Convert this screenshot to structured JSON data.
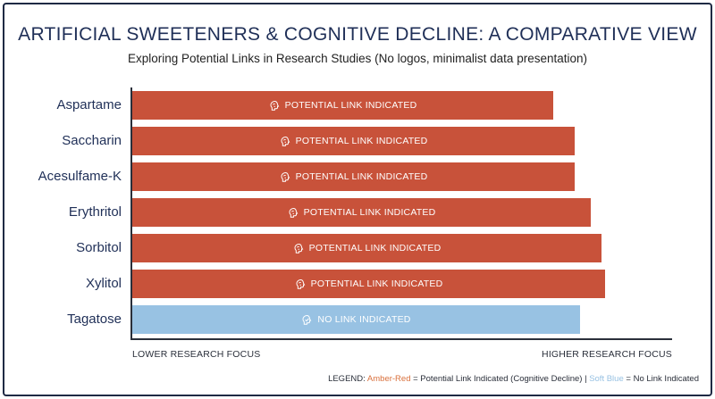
{
  "title": "ARTIFICIAL SWEETENERS & COGNITIVE DECLINE: A COMPARATIVE VIEW",
  "subtitle": "Exploring Potential Links in Research Studies (No logos, minimalist data presentation)",
  "colors": {
    "link": "#c8523a",
    "no_link": "#98c2e3",
    "title": "#1f2f57"
  },
  "chart_data": {
    "type": "bar",
    "orientation": "horizontal",
    "categories": [
      "Aspartame",
      "Saccharin",
      "Acesulfame-K",
      "Erythritol",
      "Sorbitol",
      "Xylitol",
      "Tagatose"
    ],
    "values": [
      78,
      82,
      82,
      85,
      87,
      87.5,
      83
    ],
    "bar_labels": [
      "POTENTIAL LINK INDICATED",
      "POTENTIAL LINK INDICATED",
      "POTENTIAL LINK INDICATED",
      "POTENTIAL LINK INDICATED",
      "POTENTIAL LINK INDICATED",
      "POTENTIAL LINK INDICATED",
      "NO LINK INDICATED"
    ],
    "status": [
      "link",
      "link",
      "link",
      "link",
      "link",
      "link",
      "no_link"
    ],
    "xlim": [
      0,
      100
    ],
    "x_axis_left_label": "LOWER RESEARCH FOCUS",
    "x_axis_right_label": "HIGHER RESEARCH FOCUS",
    "grid": false
  },
  "legend": {
    "prefix": "LEGEND:",
    "link_term": "Amber-Red",
    "link_desc": "= Potential Link Indicated (Cognitive Decline) |",
    "no_link_term": "Soft Blue",
    "no_link_desc": "= No Link Indicated"
  }
}
